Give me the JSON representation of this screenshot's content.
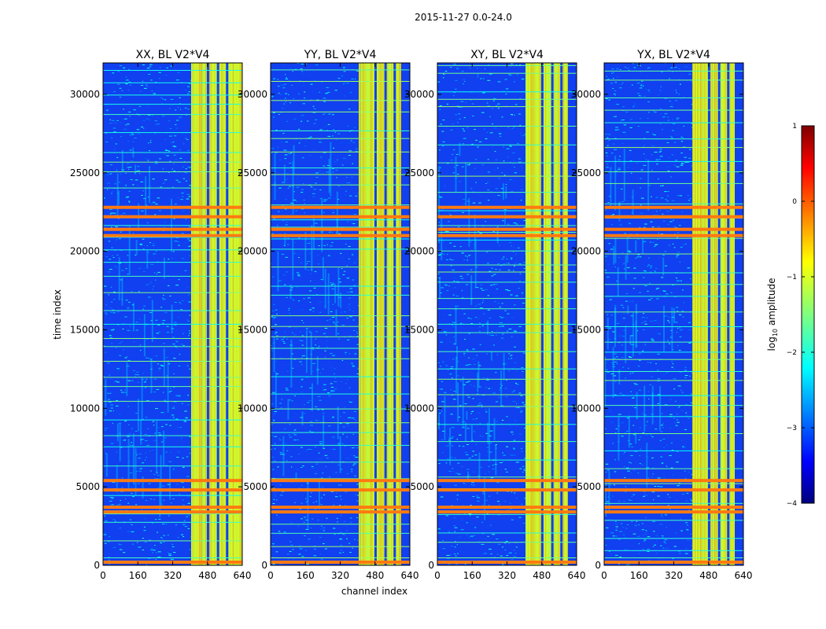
{
  "figure_title": "2015-11-27 0.0-24.0",
  "chart_data": [
    {
      "type": "heatmap",
      "title": "XX, BL V2*V4",
      "xlabel": "channel index",
      "ylabel": "time index",
      "xlim": [
        0,
        640
      ],
      "ylim": [
        0,
        32000
      ],
      "xticks": [
        0,
        160,
        320,
        480,
        640
      ],
      "yticks": [
        0,
        5000,
        10000,
        15000,
        20000,
        25000,
        30000
      ],
      "high_amplitude_channel_range": [
        405,
        640
      ],
      "strong_rfi_time_rows": [
        3400,
        3700,
        4800,
        5400,
        21000,
        21400,
        22200,
        22800
      ]
    },
    {
      "type": "heatmap",
      "title": "YY, BL V2*V4",
      "xlabel": "channel index",
      "ylabel": "time index",
      "xlim": [
        0,
        640
      ],
      "ylim": [
        0,
        32000
      ],
      "xticks": [
        0,
        160,
        320,
        480,
        640
      ],
      "yticks": [
        0,
        5000,
        10000,
        15000,
        20000,
        25000,
        30000
      ],
      "high_amplitude_channel_range": [
        405,
        600
      ],
      "strong_rfi_time_rows": [
        3400,
        3700,
        4800,
        5400,
        21000,
        21400,
        22200,
        22800
      ]
    },
    {
      "type": "heatmap",
      "title": "XY, BL V2*V4",
      "xlabel": "channel index",
      "ylabel": "time index",
      "xlim": [
        0,
        640
      ],
      "ylim": [
        0,
        32000
      ],
      "xticks": [
        0,
        160,
        320,
        480,
        640
      ],
      "yticks": [
        0,
        5000,
        10000,
        15000,
        20000,
        25000,
        30000
      ],
      "high_amplitude_channel_range": [
        405,
        600
      ],
      "strong_rfi_time_rows": [
        3400,
        3700,
        4800,
        5400,
        21000,
        21400,
        22200,
        22800
      ]
    },
    {
      "type": "heatmap",
      "title": "YX, BL V2*V4",
      "xlabel": "channel index",
      "ylabel": "time index",
      "xlim": [
        0,
        640
      ],
      "ylim": [
        0,
        32000
      ],
      "xticks": [
        0,
        160,
        320,
        480,
        640
      ],
      "yticks": [
        0,
        5000,
        10000,
        15000,
        20000,
        25000,
        30000
      ],
      "high_amplitude_channel_range": [
        405,
        600
      ],
      "strong_rfi_time_rows": [
        3400,
        3700,
        4800,
        5400,
        21000,
        21400,
        22200,
        22800
      ]
    }
  ],
  "colorbar": {
    "label": "log10 amplitude",
    "label_main": "log",
    "label_sub": "10",
    "label_rest": " amplitude",
    "range": [
      -4,
      1
    ],
    "ticks": [
      1,
      0,
      -1,
      -2,
      -3,
      -4
    ],
    "tick_labels": [
      "1",
      "0",
      "−1",
      "−2",
      "−3",
      "−4"
    ],
    "colormap": "jet"
  },
  "colors": {
    "background": "#ffffff",
    "jet": [
      "#00007f",
      "#0000ff",
      "#007fff",
      "#00ffff",
      "#7fff7f",
      "#ffff00",
      "#ff7f00",
      "#ff0000",
      "#7f0000"
    ]
  }
}
